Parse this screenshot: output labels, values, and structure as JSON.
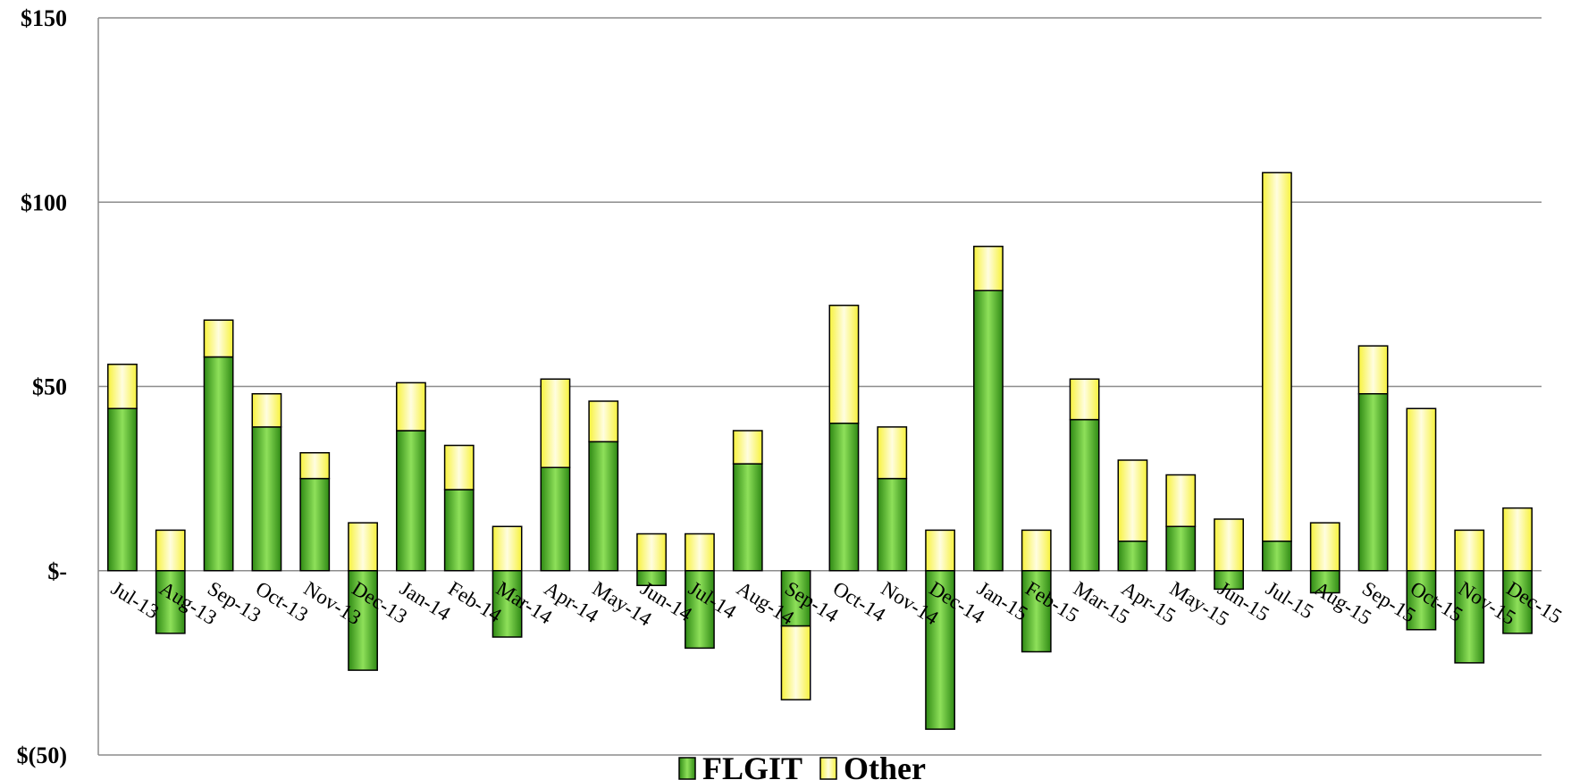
{
  "chart_data": {
    "type": "bar",
    "stacked": true,
    "categories": [
      "Jul-13",
      "Aug-13",
      "Sep-13",
      "Oct-13",
      "Nov-13",
      "Dec-13",
      "Jan-14",
      "Feb-14",
      "Mar-14",
      "Apr-14",
      "May-14",
      "Jun-14",
      "Jul-14",
      "Aug-14",
      "Sep-14",
      "Oct-14",
      "Nov-14",
      "Dec-14",
      "Jan-15",
      "Feb-15",
      "Mar-15",
      "Apr-15",
      "May-15",
      "Jun-15",
      "Jul-15",
      "Aug-15",
      "Sep-15",
      "Oct-15",
      "Nov-15",
      "Dec-15"
    ],
    "series": [
      {
        "name": "FLGIT",
        "color": "#3f9f1f",
        "values": [
          44,
          -17,
          58,
          39,
          25,
          -27,
          38,
          22,
          -18,
          28,
          35,
          -4,
          -21,
          29,
          -15,
          40,
          25,
          -43,
          76,
          -22,
          41,
          8,
          12,
          -5,
          8,
          -6,
          48,
          -16,
          -25,
          -17
        ]
      },
      {
        "name": "Other",
        "color": "#ffff66",
        "values": [
          12,
          11,
          10,
          9,
          7,
          13,
          13,
          12,
          12,
          24,
          11,
          10,
          10,
          9,
          -20,
          32,
          14,
          11,
          12,
          11,
          11,
          22,
          14,
          14,
          100,
          13,
          13,
          44,
          11,
          17
        ]
      }
    ],
    "yaxis": {
      "ylim": [
        -50,
        150
      ],
      "ticks": [
        -50,
        0,
        50,
        100,
        150
      ]
    },
    "ytick_labels": [
      "$(50)",
      "$-",
      "$50",
      "$100",
      "$150"
    ],
    "grid": true,
    "legend_position": "bottom",
    "title": "",
    "xlabel": "",
    "ylabel": ""
  }
}
